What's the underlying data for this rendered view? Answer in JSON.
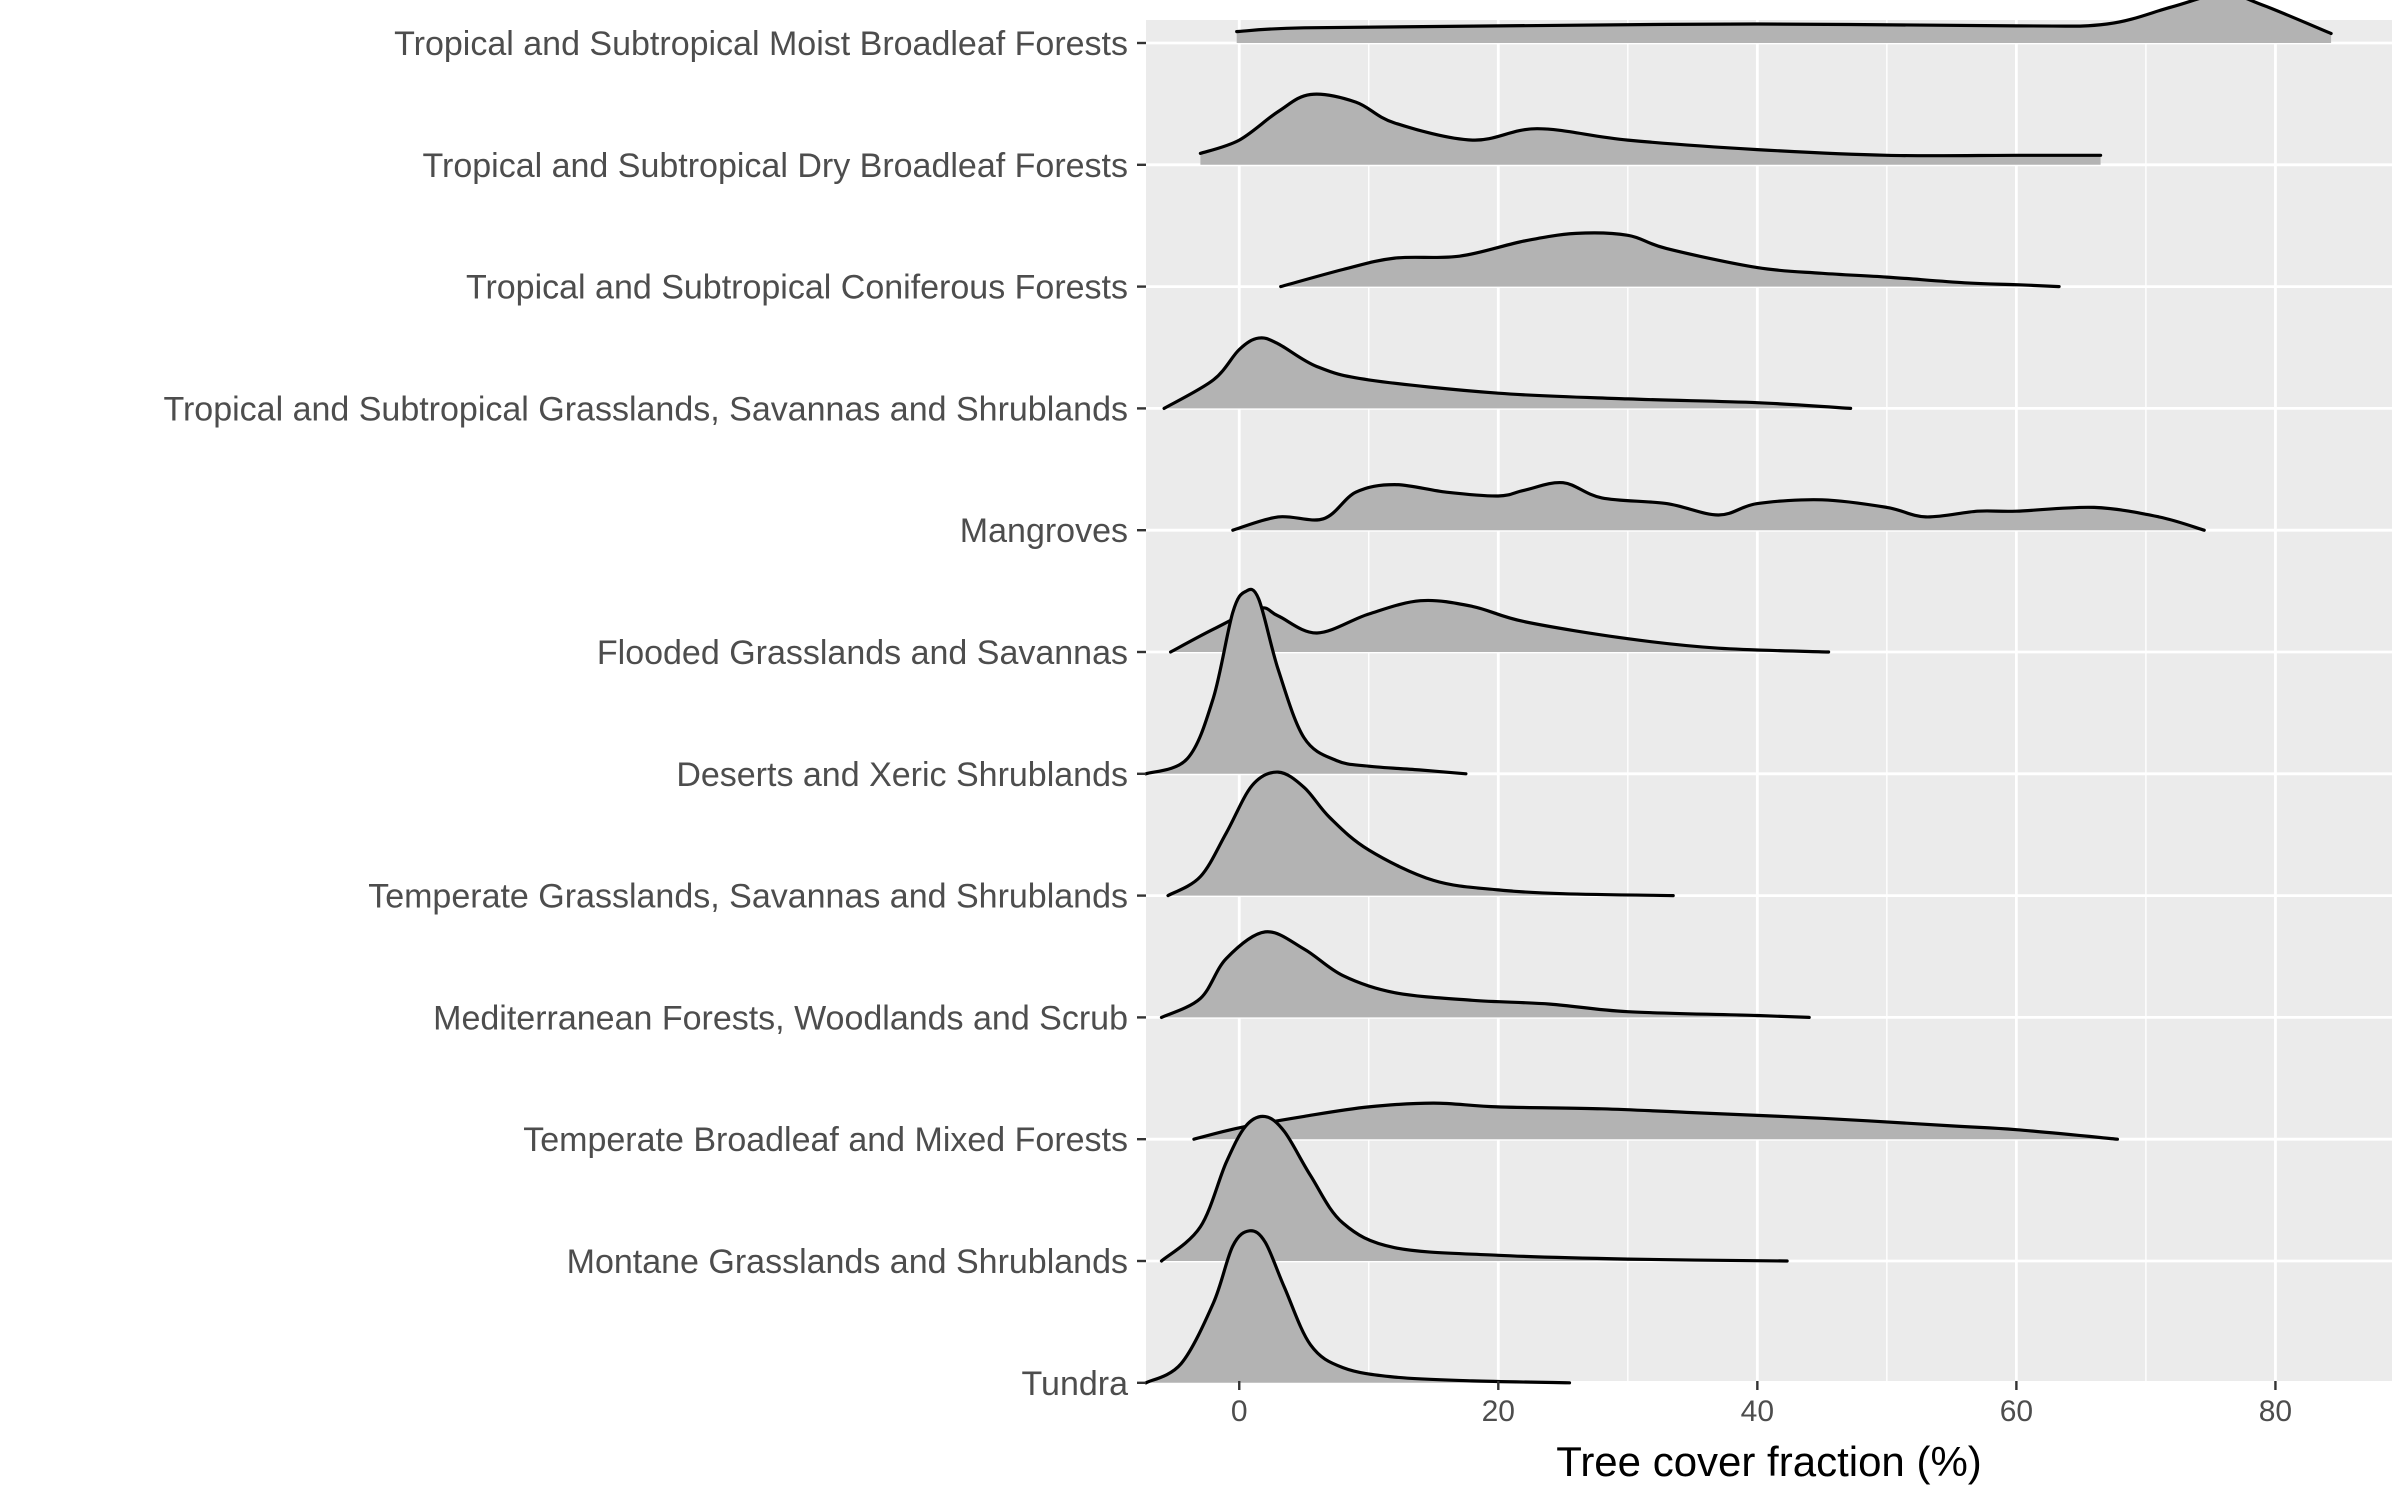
{
  "chart_data": {
    "type": "ridgeline",
    "title": "",
    "xlabel": "Tree cover fraction (%)",
    "ylabel": "",
    "xlim": [
      -7.2,
      89
    ],
    "xticks": [
      0,
      20,
      40,
      60,
      80
    ],
    "grid": true,
    "legend": "none",
    "fill_color": "#b3b3b3",
    "line_color": "#000000",
    "panel_color": "#ebebeb",
    "series": [
      {
        "name": "Tropical and Subtropical Moist Broadleaf Forests",
        "x": [
          -0.2,
          5,
          20,
          40,
          60,
          67,
          72,
          76,
          79,
          84.3
        ],
        "y": [
          0.06,
          0.08,
          0.09,
          0.1,
          0.09,
          0.1,
          0.19,
          0.26,
          0.2,
          0.05
        ]
      },
      {
        "name": "Tropical and Subtropical Dry Broadleaf Forests",
        "x": [
          -3,
          0,
          3,
          5.5,
          9,
          12,
          18,
          23,
          30,
          40,
          50,
          60,
          66.5
        ],
        "y": [
          0.06,
          0.13,
          0.28,
          0.37,
          0.33,
          0.22,
          0.13,
          0.19,
          0.13,
          0.08,
          0.05,
          0.05,
          0.05
        ]
      },
      {
        "name": "Tropical and Subtropical Coniferous Forests",
        "x": [
          3.2,
          8,
          12,
          17,
          22,
          26,
          30,
          33,
          40,
          45,
          50,
          56,
          60,
          63.3
        ],
        "y": [
          0.0,
          0.09,
          0.15,
          0.16,
          0.24,
          0.28,
          0.27,
          0.2,
          0.1,
          0.07,
          0.05,
          0.02,
          0.01,
          0.0
        ]
      },
      {
        "name": "Tropical and Subtropical Grasslands, Savannas and Shrublands",
        "x": [
          -5.8,
          -2,
          0,
          1.5,
          3,
          6,
          10,
          20,
          30,
          40,
          47.2
        ],
        "y": [
          0.0,
          0.15,
          0.31,
          0.37,
          0.34,
          0.22,
          0.15,
          0.08,
          0.05,
          0.03,
          0.0
        ]
      },
      {
        "name": "Mangroves",
        "x": [
          -0.5,
          3,
          6.5,
          9,
          12,
          16,
          20,
          22,
          25,
          28,
          33,
          37,
          40,
          45,
          50,
          53,
          57,
          60,
          66,
          71,
          74.5
        ],
        "y": [
          0.0,
          0.07,
          0.06,
          0.2,
          0.24,
          0.2,
          0.18,
          0.21,
          0.25,
          0.17,
          0.14,
          0.08,
          0.14,
          0.16,
          0.12,
          0.07,
          0.1,
          0.1,
          0.12,
          0.07,
          0.0
        ]
      },
      {
        "name": "Flooded Grasslands and Savannas",
        "x": [
          -5.3,
          -2,
          1.5,
          3,
          6,
          10,
          14,
          18,
          22,
          30,
          37,
          45.5
        ],
        "y": [
          0.0,
          0.12,
          0.23,
          0.19,
          0.1,
          0.2,
          0.27,
          0.24,
          0.16,
          0.07,
          0.02,
          0.0
        ]
      },
      {
        "name": "Deserts and Xeric Shrublands",
        "x": [
          -7.2,
          -4,
          -2,
          -0.5,
          0.5,
          1.5,
          3,
          5,
          7.5,
          10,
          14,
          17.5
        ],
        "y": [
          0.0,
          0.08,
          0.4,
          0.85,
          0.96,
          0.92,
          0.55,
          0.19,
          0.07,
          0.04,
          0.02,
          0.0
        ]
      },
      {
        "name": "Temperate Grasslands, Savannas and Shrublands",
        "x": [
          -5.5,
          -3,
          -1,
          1,
          3,
          5,
          7,
          10,
          15,
          20,
          25,
          33.5
        ],
        "y": [
          0.0,
          0.1,
          0.33,
          0.58,
          0.65,
          0.57,
          0.41,
          0.24,
          0.08,
          0.03,
          0.01,
          0.0
        ]
      },
      {
        "name": "Mediterranean Forests, Woodlands and Scrub",
        "x": [
          -6,
          -3,
          -1,
          2,
          5,
          8,
          12,
          18,
          24,
          30,
          40,
          44
        ],
        "y": [
          0.0,
          0.1,
          0.31,
          0.45,
          0.36,
          0.22,
          0.13,
          0.09,
          0.07,
          0.03,
          0.01,
          0.0
        ]
      },
      {
        "name": "Temperate Broadleaf and Mixed Forests",
        "x": [
          -3.5,
          0,
          5,
          10,
          15,
          20,
          28,
          35,
          45,
          55,
          60,
          67.8
        ],
        "y": [
          0.0,
          0.06,
          0.12,
          0.17,
          0.19,
          0.17,
          0.16,
          0.14,
          0.11,
          0.07,
          0.05,
          0.0
        ]
      },
      {
        "name": "Montane Grasslands and Shrublands",
        "x": [
          -6,
          -3,
          -1,
          0.5,
          2,
          3.5,
          5.5,
          8,
          12,
          20,
          30,
          42.3
        ],
        "y": [
          0.0,
          0.18,
          0.52,
          0.71,
          0.76,
          0.68,
          0.45,
          0.2,
          0.07,
          0.03,
          0.01,
          0.0
        ]
      },
      {
        "name": "Tundra",
        "x": [
          -7.2,
          -4.5,
          -2,
          -0.5,
          0.8,
          2,
          3.5,
          5.5,
          8,
          12,
          18,
          25.5
        ],
        "y": [
          0.0,
          0.1,
          0.42,
          0.72,
          0.8,
          0.74,
          0.5,
          0.2,
          0.08,
          0.03,
          0.01,
          0.0
        ]
      }
    ]
  }
}
